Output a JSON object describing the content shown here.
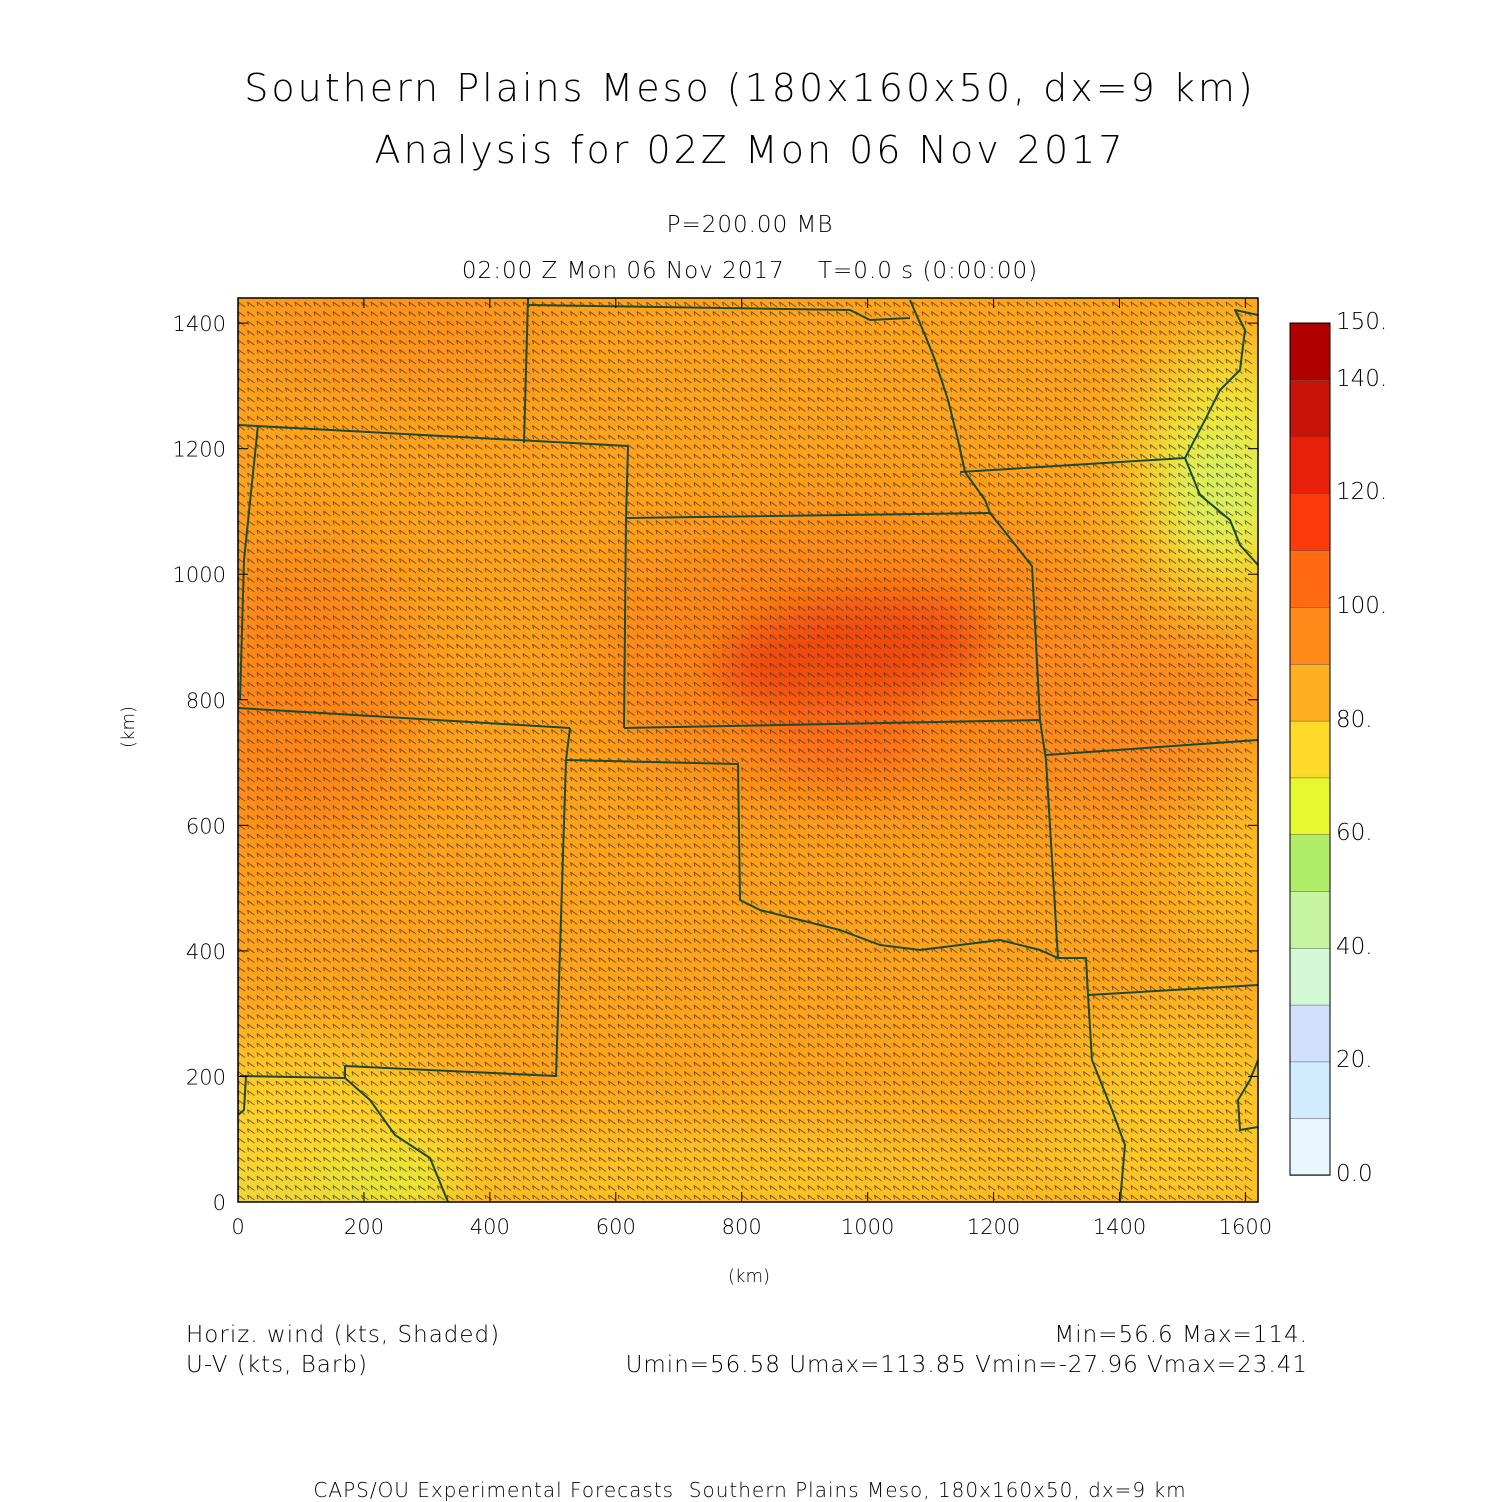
{
  "title": {
    "line1": "Southern Plains Meso (180x160x50, dx=9 km)",
    "line2": "Analysis for 02Z Mon 06 Nov 2017"
  },
  "subtitle": {
    "level": "P=200.00 MB",
    "valid_time": "02:00 Z Mon 06 Nov 2017    T=0.0 s (0:00:00)"
  },
  "axes": {
    "x_label": "(km)",
    "y_label": "(km)",
    "x_ticks": [
      "0",
      "200",
      "400",
      "600",
      "800",
      "1000",
      "1200",
      "1400",
      "1600"
    ],
    "y_ticks": [
      "0",
      "200",
      "400",
      "600",
      "800",
      "1000",
      "1200",
      "1400"
    ],
    "x_range_km": [
      0,
      1620
    ],
    "y_range_km": [
      0,
      1440
    ]
  },
  "colorbar": {
    "labels": [
      "150.",
      "140.",
      "120.",
      "100.",
      "80.",
      "60.",
      "40.",
      "20.",
      "0.0"
    ],
    "colors_bottom_to_top": [
      "#e8f6ff",
      "#d2ecff",
      "#d0e0fa",
      "#d4f8d4",
      "#c6f4a0",
      "#b0ee6a",
      "#e8f830",
      "#ffda28",
      "#ffb020",
      "#ff8a18",
      "#ff6a12",
      "#ff3a0a",
      "#e8200a",
      "#c81408",
      "#b00000"
    ]
  },
  "legend": {
    "field1": "Horiz. wind (kts, Shaded)",
    "field2": "U-V (kts, Barb)",
    "minmax": "Min=56.6 Max=114.",
    "uv_minmax": "Umin=56.58 Umax=113.85 Vmin=-27.96 Vmax=23.41"
  },
  "footer": "CAPS/OU Experimental Forecasts  Southern Plains Meso, 180x160x50, dx=9 km",
  "line_color": "#1e4a30"
}
